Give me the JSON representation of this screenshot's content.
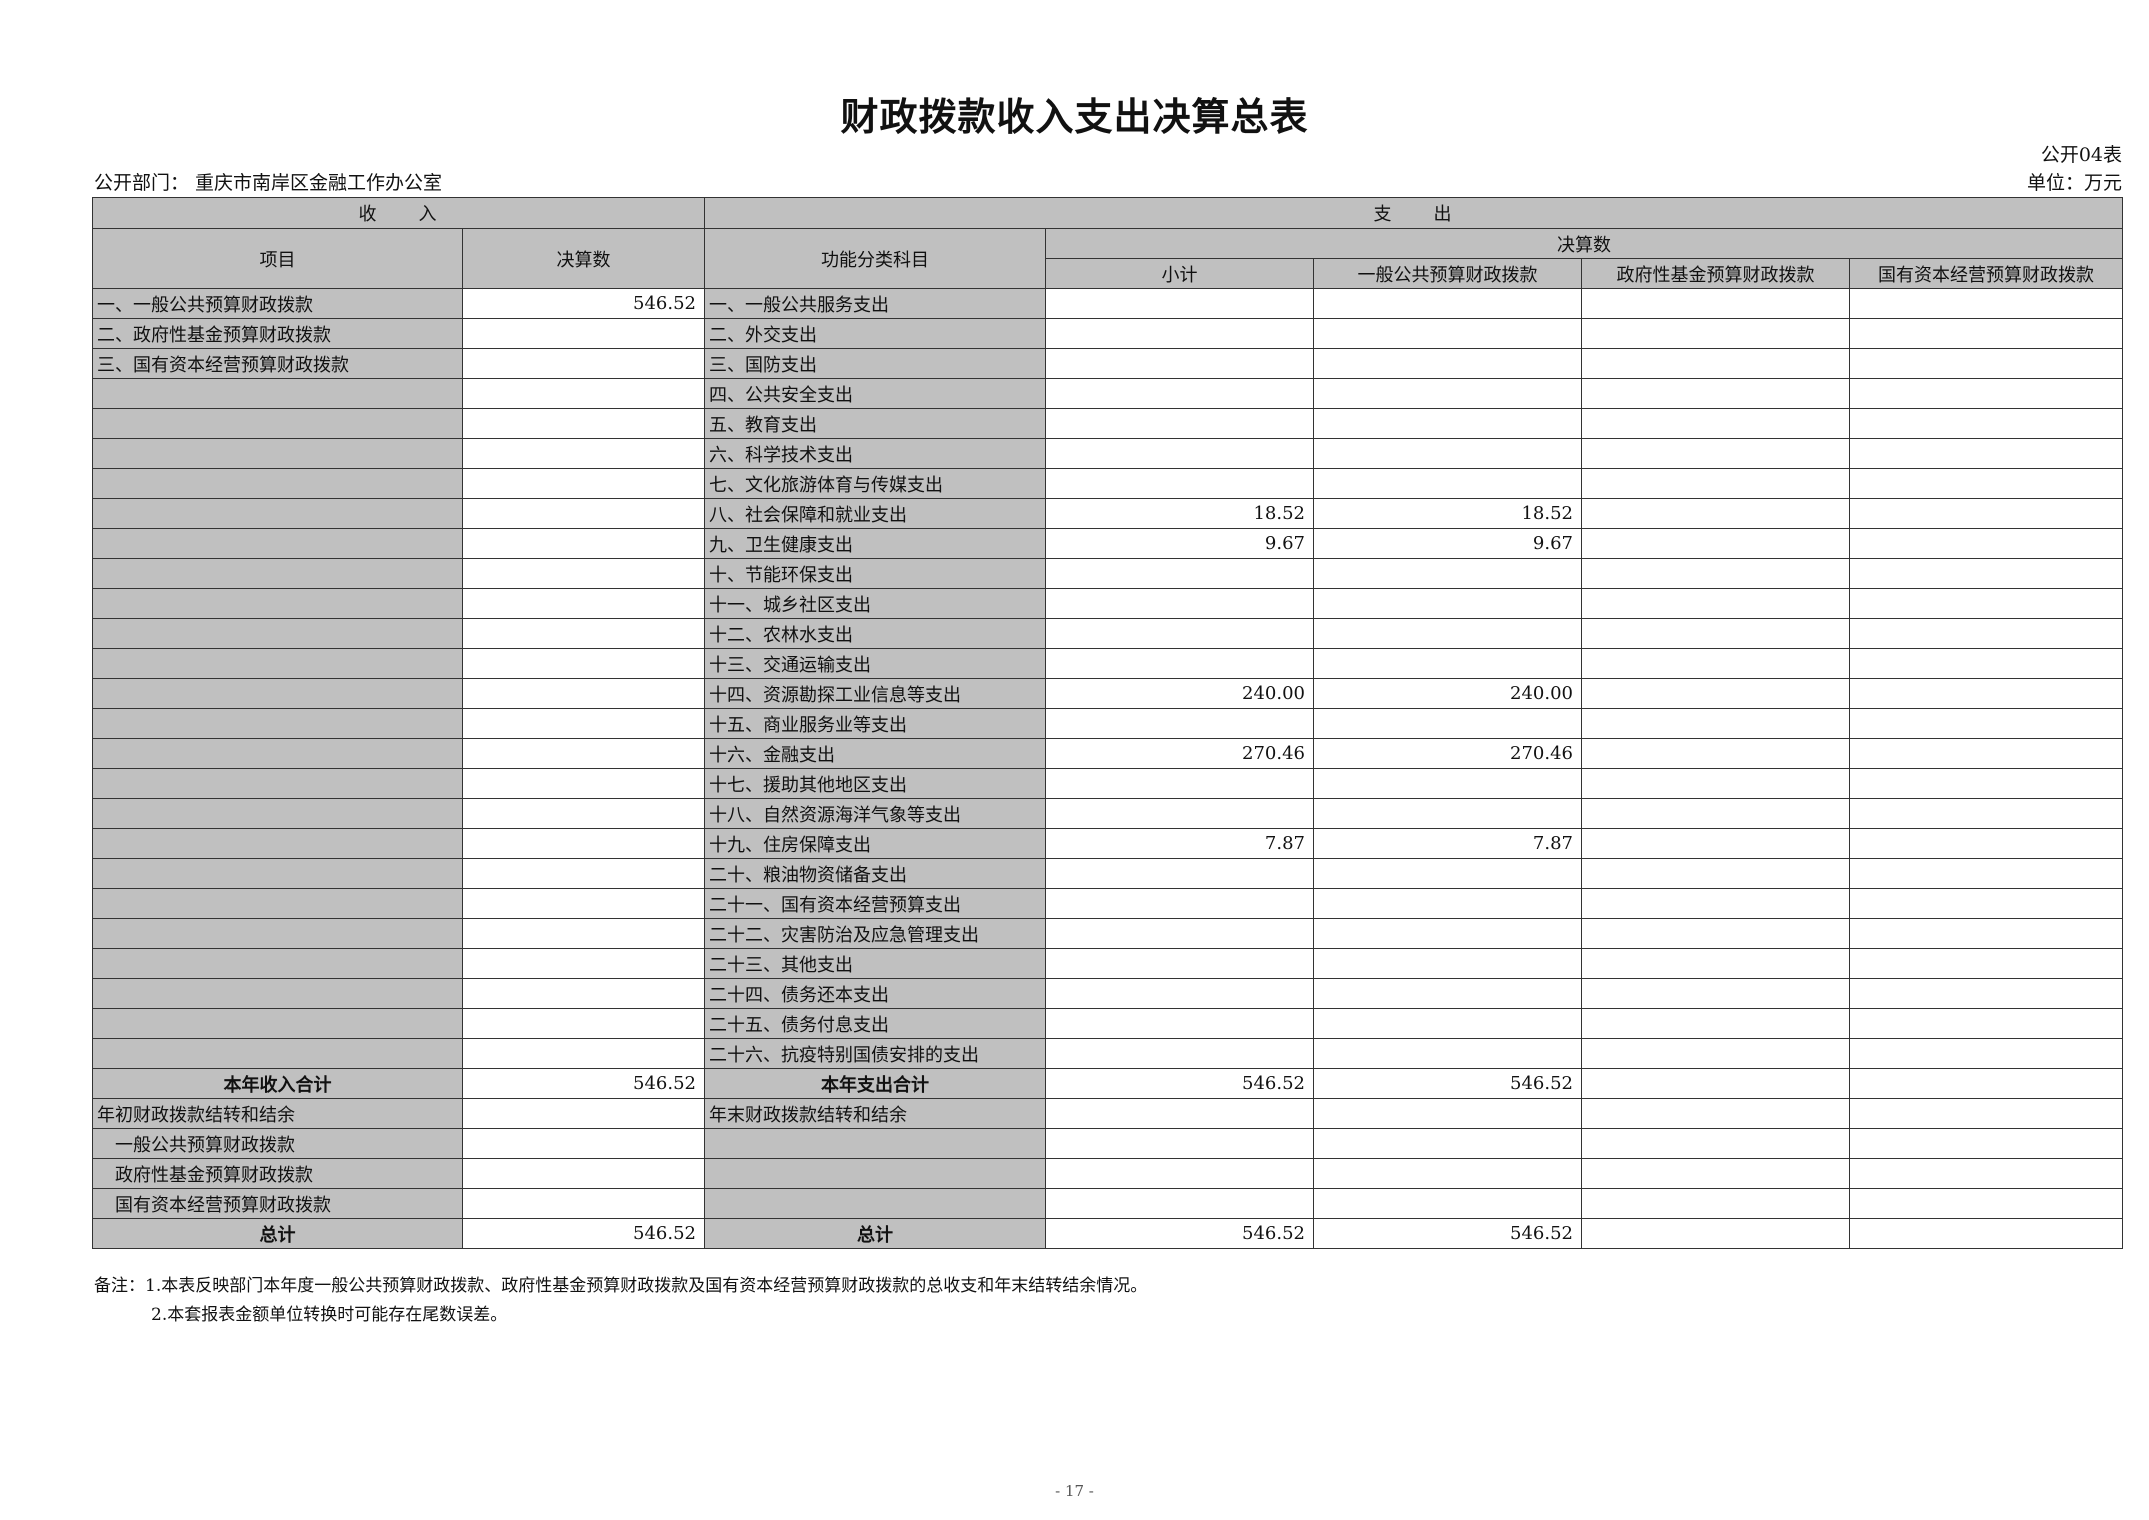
{
  "title": "财政拨款收入支出决算总表",
  "form_no": "公开04表",
  "unit": "单位：万元",
  "department": "公开部门：  重庆市南岸区金融工作办公室",
  "headers": {
    "income": "收　　入",
    "expense": "支　　出",
    "item": "项目",
    "income_amount": "决算数",
    "function_class": "功能分类科目",
    "final_amount": "决算数",
    "subtotal": "小计",
    "general": "一般公共预算财政拨款",
    "fund": "政府性基金预算财政拨款",
    "soe": "国有资本经营预算财政拨款"
  },
  "rows": [
    {
      "income_item": "一、一般公共预算财政拨款",
      "income_amount": "546.52",
      "expense_item": "一、一般公共服务支出",
      "subtotal": "",
      "general": "",
      "fund": "",
      "soe": ""
    },
    {
      "income_item": "二、政府性基金预算财政拨款",
      "income_amount": "",
      "expense_item": "二、外交支出",
      "subtotal": "",
      "general": "",
      "fund": "",
      "soe": ""
    },
    {
      "income_item": "三、国有资本经营预算财政拨款",
      "income_amount": "",
      "expense_item": "三、国防支出",
      "subtotal": "",
      "general": "",
      "fund": "",
      "soe": ""
    },
    {
      "income_item": "",
      "income_amount": "",
      "expense_item": "四、公共安全支出",
      "subtotal": "",
      "general": "",
      "fund": "",
      "soe": ""
    },
    {
      "income_item": "",
      "income_amount": "",
      "expense_item": "五、教育支出",
      "subtotal": "",
      "general": "",
      "fund": "",
      "soe": ""
    },
    {
      "income_item": "",
      "income_amount": "",
      "expense_item": "六、科学技术支出",
      "subtotal": "",
      "general": "",
      "fund": "",
      "soe": ""
    },
    {
      "income_item": "",
      "income_amount": "",
      "expense_item": "七、文化旅游体育与传媒支出",
      "subtotal": "",
      "general": "",
      "fund": "",
      "soe": ""
    },
    {
      "income_item": "",
      "income_amount": "",
      "expense_item": "八、社会保障和就业支出",
      "subtotal": "18.52",
      "general": "18.52",
      "fund": "",
      "soe": ""
    },
    {
      "income_item": "",
      "income_amount": "",
      "expense_item": "九、卫生健康支出",
      "subtotal": "9.67",
      "general": "9.67",
      "fund": "",
      "soe": ""
    },
    {
      "income_item": "",
      "income_amount": "",
      "expense_item": "十、节能环保支出",
      "subtotal": "",
      "general": "",
      "fund": "",
      "soe": ""
    },
    {
      "income_item": "",
      "income_amount": "",
      "expense_item": "十一、城乡社区支出",
      "subtotal": "",
      "general": "",
      "fund": "",
      "soe": ""
    },
    {
      "income_item": "",
      "income_amount": "",
      "expense_item": "十二、农林水支出",
      "subtotal": "",
      "general": "",
      "fund": "",
      "soe": ""
    },
    {
      "income_item": "",
      "income_amount": "",
      "expense_item": "十三、交通运输支出",
      "subtotal": "",
      "general": "",
      "fund": "",
      "soe": ""
    },
    {
      "income_item": "",
      "income_amount": "",
      "expense_item": "十四、资源勘探工业信息等支出",
      "subtotal": "240.00",
      "general": "240.00",
      "fund": "",
      "soe": ""
    },
    {
      "income_item": "",
      "income_amount": "",
      "expense_item": "十五、商业服务业等支出",
      "subtotal": "",
      "general": "",
      "fund": "",
      "soe": ""
    },
    {
      "income_item": "",
      "income_amount": "",
      "expense_item": "十六、金融支出",
      "subtotal": "270.46",
      "general": "270.46",
      "fund": "",
      "soe": ""
    },
    {
      "income_item": "",
      "income_amount": "",
      "expense_item": "十七、援助其他地区支出",
      "subtotal": "",
      "general": "",
      "fund": "",
      "soe": ""
    },
    {
      "income_item": "",
      "income_amount": "",
      "expense_item": "十八、自然资源海洋气象等支出",
      "subtotal": "",
      "general": "",
      "fund": "",
      "soe": ""
    },
    {
      "income_item": "",
      "income_amount": "",
      "expense_item": "十九、住房保障支出",
      "subtotal": "7.87",
      "general": "7.87",
      "fund": "",
      "soe": ""
    },
    {
      "income_item": "",
      "income_amount": "",
      "expense_item": "二十、粮油物资储备支出",
      "subtotal": "",
      "general": "",
      "fund": "",
      "soe": ""
    },
    {
      "income_item": "",
      "income_amount": "",
      "expense_item": "二十一、国有资本经营预算支出",
      "subtotal": "",
      "general": "",
      "fund": "",
      "soe": ""
    },
    {
      "income_item": "",
      "income_amount": "",
      "expense_item": "二十二、灾害防治及应急管理支出",
      "subtotal": "",
      "general": "",
      "fund": "",
      "soe": ""
    },
    {
      "income_item": "",
      "income_amount": "",
      "expense_item": "二十三、其他支出",
      "subtotal": "",
      "general": "",
      "fund": "",
      "soe": ""
    },
    {
      "income_item": "",
      "income_amount": "",
      "expense_item": "二十四、债务还本支出",
      "subtotal": "",
      "general": "",
      "fund": "",
      "soe": ""
    },
    {
      "income_item": "",
      "income_amount": "",
      "expense_item": "二十五、债务付息支出",
      "subtotal": "",
      "general": "",
      "fund": "",
      "soe": ""
    },
    {
      "income_item": "",
      "income_amount": "",
      "expense_item": "二十六、抗疫特别国债安排的支出",
      "subtotal": "",
      "general": "",
      "fund": "",
      "soe": ""
    }
  ],
  "year_total": {
    "income_item": "本年收入合计",
    "income_amount": "546.52",
    "expense_item": "本年支出合计",
    "subtotal": "546.52",
    "general": "546.52",
    "fund": "",
    "soe": ""
  },
  "carryover": [
    {
      "income_item": "年初财政拨款结转和结余",
      "income_amount": "",
      "expense_item": "年末财政拨款结转和结余",
      "subtotal": "",
      "general": "",
      "fund": "",
      "soe": ""
    },
    {
      "income_item": "一般公共预算财政拨款",
      "income_amount": "",
      "expense_item": "",
      "subtotal": "",
      "general": "",
      "fund": "",
      "soe": ""
    },
    {
      "income_item": "政府性基金预算财政拨款",
      "income_amount": "",
      "expense_item": "",
      "subtotal": "",
      "general": "",
      "fund": "",
      "soe": ""
    },
    {
      "income_item": "国有资本经营预算财政拨款",
      "income_amount": "",
      "expense_item": "",
      "subtotal": "",
      "general": "",
      "fund": "",
      "soe": ""
    }
  ],
  "grand_total": {
    "income_item": "总计",
    "income_amount": "546.52",
    "expense_item": "总计",
    "subtotal": "546.52",
    "general": "546.52",
    "fund": "",
    "soe": ""
  },
  "notes": [
    "备注：1.本表反映部门本年度一般公共预算财政拨款、政府性基金预算财政拨款及国有资本经营预算财政拨款的总收支和年末结转结余情况。",
    "2.本套报表金额单位转换时可能存在尾数误差。"
  ],
  "page_number": "- 17 -"
}
